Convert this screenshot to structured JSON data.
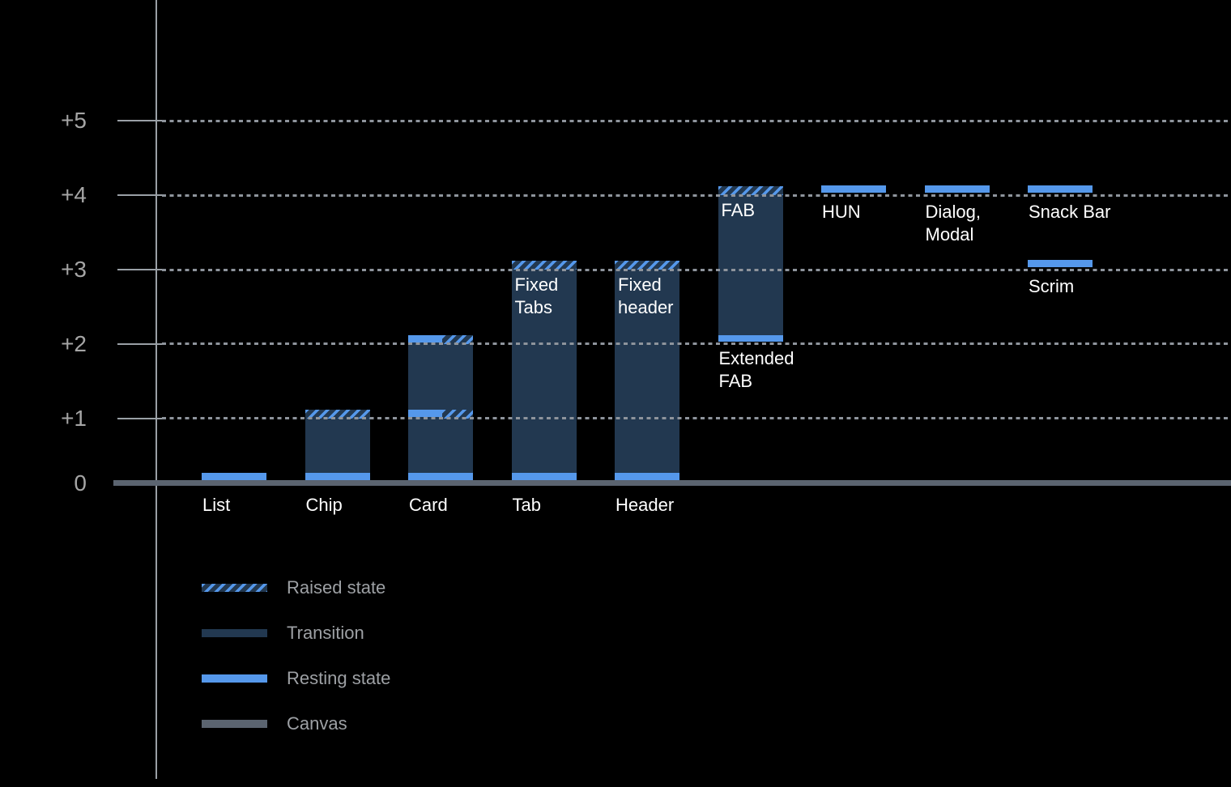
{
  "colors": {
    "background": "#000000",
    "resting": "#5598EB",
    "transition": "#223850",
    "canvas_bar": "#5B6470",
    "grid": "#8E949C",
    "axis": "#9AA0A6",
    "tick_label": "#A5A5A5",
    "category_label": "#FFFFFF",
    "legend_text": "#9DA0A4"
  },
  "chart_data": {
    "type": "bar",
    "orientation": "vertical",
    "y_axis": {
      "tick_labels": [
        "+5",
        "+4",
        "+3",
        "+2",
        "+1",
        "0"
      ],
      "tick_values": [
        5,
        4,
        3,
        2,
        1,
        0
      ],
      "ylim": [
        0,
        5.5
      ],
      "grid": "dotted-horizontal"
    },
    "x_categories": [
      "List",
      "Chip",
      "Card",
      "Tab",
      "Header"
    ],
    "bars": [
      {
        "name": "List",
        "col": 0,
        "axis_label": "List",
        "resting_elevation": 0,
        "grounded": true
      },
      {
        "name": "Chip",
        "col": 1,
        "axis_label": "Chip",
        "resting_elevation": 0,
        "top": 1,
        "raised_style": "full",
        "grounded": true
      },
      {
        "name": "Card",
        "col": 2,
        "axis_label": "Card",
        "resting_elevation": 0,
        "top": 2,
        "split_levels": [
          1,
          2
        ],
        "grounded": true
      },
      {
        "name": "Tab",
        "col": 3,
        "axis_label": "Tab",
        "resting_elevation": 0,
        "top": 3,
        "raised_style": "full",
        "grounded": true,
        "label_inside": [
          "Fixed",
          "Tabs"
        ]
      },
      {
        "name": "Header",
        "col": 4,
        "axis_label": "Header",
        "resting_elevation": 0,
        "top": 3,
        "raised_style": "full",
        "grounded": true,
        "label_inside": [
          "Fixed",
          "header"
        ]
      },
      {
        "name": "Extended FAB",
        "col": 5,
        "resting_elevation": 2,
        "top": 4,
        "raised_style": "full",
        "grounded": false,
        "label_inside": [
          "FAB"
        ],
        "label_below": [
          "Extended",
          "FAB"
        ]
      },
      {
        "name": "HUN",
        "col": 6,
        "resting_only_at": 4,
        "label_below": [
          "HUN"
        ]
      },
      {
        "name": "Dialog, Modal",
        "col": 7,
        "resting_only_at": 4,
        "label_below": [
          "Dialog,",
          "Modal"
        ]
      },
      {
        "name": "Snack Bar",
        "col": 8,
        "resting_only_at": 4,
        "label_below": [
          "Snack Bar"
        ]
      },
      {
        "name": "Scrim",
        "col": 8,
        "resting_only_at": 3,
        "label_below": [
          "Scrim"
        ]
      }
    ],
    "legend": {
      "position": "bottom-left",
      "entries": [
        {
          "label": "Raised state",
          "style": "raised"
        },
        {
          "label": "Transition",
          "style": "transition"
        },
        {
          "label": "Resting state",
          "style": "resting"
        },
        {
          "label": "Canvas",
          "style": "canvas"
        }
      ]
    }
  }
}
